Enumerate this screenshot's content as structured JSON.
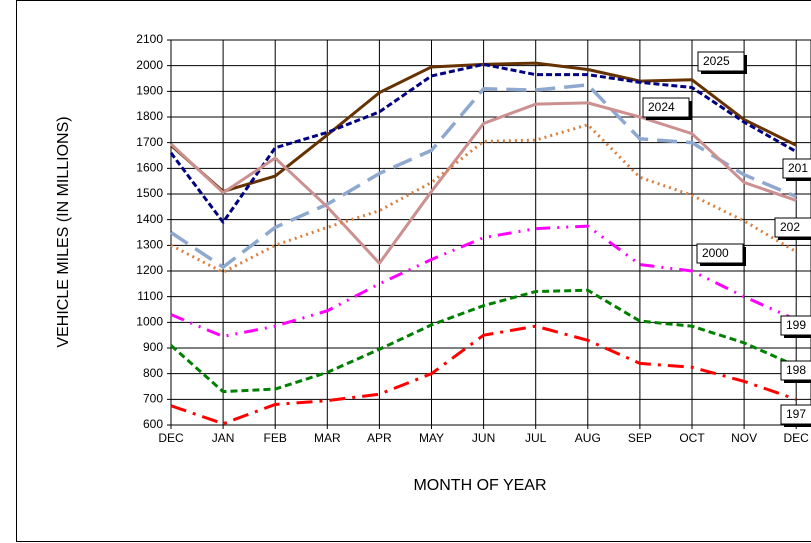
{
  "chart_data": {
    "type": "line",
    "x_label": "MONTH OF YEAR",
    "y_label": "VEHICLE MILES (IN MILLIONS)",
    "categories": [
      "DEC",
      "JAN",
      "FEB",
      "MAR",
      "APR",
      "MAY",
      "JUN",
      "JUL",
      "AUG",
      "SEP",
      "OCT",
      "NOV",
      "DEC"
    ],
    "ylim": [
      600,
      2100
    ],
    "yticks": [
      600,
      700,
      800,
      900,
      1000,
      1100,
      1200,
      1300,
      1400,
      1500,
      1600,
      1700,
      1800,
      1900,
      2000,
      2100
    ],
    "grid": true,
    "series": [
      {
        "color": "#663300",
        "values": [
          1690,
          1510,
          1570,
          1730,
          1895,
          1995,
          2005,
          2010,
          1985,
          1940,
          1945,
          1790,
          1690
        ]
      },
      {
        "color": "#000080",
        "values": [
          1660,
          1390,
          1680,
          1740,
          1820,
          1960,
          2005,
          1965,
          1965,
          1935,
          1915,
          1780,
          1665
        ]
      },
      {
        "color": "#8fa8d0",
        "values": [
          1350,
          1215,
          1370,
          1460,
          1580,
          1670,
          1910,
          1905,
          1925,
          1715,
          1700,
          1575,
          1490
        ]
      },
      {
        "color": "#cc9090",
        "values": [
          1695,
          1505,
          1640,
          1450,
          1230,
          1510,
          1775,
          1850,
          1855,
          1800,
          1735,
          1545,
          1475
        ]
      },
      {
        "color": "#d98040",
        "values": [
          1300,
          1195,
          1300,
          1370,
          1435,
          1545,
          1705,
          1710,
          1770,
          1565,
          1495,
          1395,
          1275
        ]
      },
      {
        "color": "#ff00ff",
        "values": [
          1030,
          945,
          985,
          1045,
          1150,
          1245,
          1330,
          1365,
          1375,
          1225,
          1200,
          1100,
          1010
        ]
      },
      {
        "color": "#008000",
        "values": [
          910,
          730,
          740,
          805,
          895,
          990,
          1065,
          1120,
          1125,
          1005,
          985,
          920,
          830
        ]
      },
      {
        "color": "#ff0000",
        "values": [
          675,
          605,
          680,
          695,
          720,
          800,
          950,
          985,
          930,
          840,
          825,
          770,
          700
        ]
      }
    ],
    "annotations": [
      "2025",
      "2024",
      "2000",
      "201",
      "202",
      "199",
      "198",
      "197"
    ]
  }
}
